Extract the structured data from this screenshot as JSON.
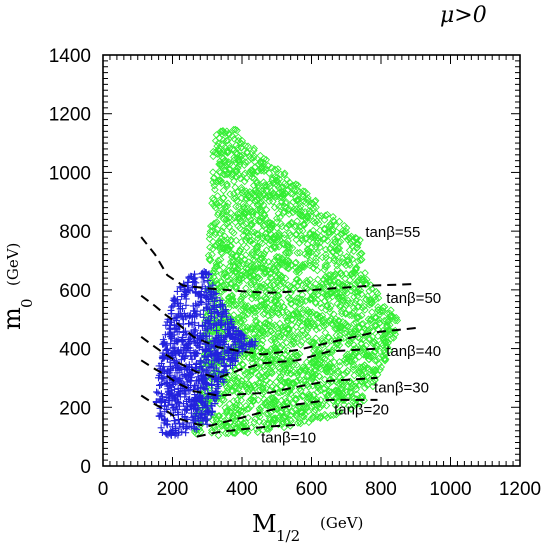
{
  "chart_data": {
    "type": "scatter",
    "title": "",
    "corner_label": "μ>0",
    "xlabel": "M",
    "xlabel_sub": "1/2",
    "xlabel_unit": "(GeV)",
    "ylabel": "m",
    "ylabel_sub": "0",
    "ylabel_unit": "(GeV)",
    "xlim": [
      0,
      1200
    ],
    "ylim": [
      0,
      1400
    ],
    "xticks": [
      0,
      200,
      400,
      600,
      800,
      1000,
      1200
    ],
    "yticks": [
      0,
      200,
      400,
      600,
      800,
      1000,
      1200,
      1400
    ],
    "colors": {
      "green": "#33ee33",
      "blue": "#2222dd",
      "line": "#000000"
    },
    "regions": [
      {
        "marker": "diamond",
        "color": "#33ee33",
        "polygon": [
          [
            260,
            100
          ],
          [
            280,
            300
          ],
          [
            300,
            600
          ],
          [
            310,
            900
          ],
          [
            320,
            1140
          ],
          [
            400,
            1150
          ],
          [
            460,
            1060
          ],
          [
            560,
            960
          ],
          [
            660,
            860
          ],
          [
            740,
            770
          ],
          [
            760,
            640
          ],
          [
            850,
            500
          ],
          [
            840,
            430
          ],
          [
            790,
            300
          ],
          [
            760,
            230
          ],
          [
            700,
            180
          ],
          [
            600,
            150
          ],
          [
            500,
            120
          ],
          [
            400,
            110
          ],
          [
            300,
            100
          ]
        ]
      },
      {
        "marker": "plus",
        "color": "#2222dd",
        "polygon": [
          [
            170,
            110
          ],
          [
            150,
            200
          ],
          [
            160,
            330
          ],
          [
            180,
            480
          ],
          [
            210,
            600
          ],
          [
            250,
            650
          ],
          [
            300,
            670
          ],
          [
            340,
            560
          ],
          [
            400,
            450
          ],
          [
            450,
            420
          ],
          [
            400,
            380
          ],
          [
            360,
            320
          ],
          [
            330,
            230
          ],
          [
            300,
            140
          ],
          [
            250,
            110
          ],
          [
            200,
            100
          ]
        ]
      }
    ],
    "series": [
      {
        "label": "tanβ=55",
        "curve": [
          [
            110,
            780
          ],
          [
            150,
            720
          ],
          [
            185,
            650
          ],
          [
            230,
            615
          ],
          [
            300,
            605
          ],
          [
            400,
            595
          ],
          [
            480,
            590
          ],
          [
            560,
            595
          ],
          [
            660,
            605
          ],
          [
            780,
            615
          ],
          [
            900,
            620
          ]
        ]
      },
      {
        "label": "tanβ=50",
        "curve": [
          [
            110,
            580
          ],
          [
            150,
            545
          ],
          [
            180,
            515
          ],
          [
            210,
            490
          ],
          [
            260,
            440
          ],
          [
            330,
            405
          ],
          [
            400,
            390
          ],
          [
            460,
            380
          ],
          [
            560,
            395
          ],
          [
            650,
            420
          ],
          [
            780,
            455
          ],
          [
            900,
            470
          ]
        ]
      },
      {
        "label": "tanβ=40",
        "curve": [
          [
            110,
            440
          ],
          [
            150,
            405
          ],
          [
            180,
            380
          ],
          [
            220,
            350
          ],
          [
            270,
            320
          ],
          [
            330,
            300
          ],
          [
            400,
            330
          ],
          [
            460,
            350
          ],
          [
            560,
            360
          ],
          [
            650,
            390
          ],
          [
            790,
            400
          ]
        ]
      },
      {
        "label": "tanβ=30",
        "curve": [
          [
            110,
            360
          ],
          [
            150,
            330
          ],
          [
            180,
            310
          ],
          [
            210,
            285
          ],
          [
            260,
            255
          ],
          [
            330,
            240
          ],
          [
            400,
            245
          ],
          [
            480,
            250
          ],
          [
            560,
            270
          ],
          [
            650,
            290
          ],
          [
            790,
            300
          ]
        ]
      },
      {
        "label": "tanβ=20",
        "curve": [
          [
            110,
            240
          ],
          [
            150,
            210
          ],
          [
            180,
            190
          ],
          [
            210,
            165
          ],
          [
            260,
            145
          ],
          [
            300,
            135
          ],
          [
            400,
            165
          ],
          [
            480,
            190
          ],
          [
            560,
            210
          ],
          [
            650,
            225
          ],
          [
            790,
            225
          ]
        ]
      },
      {
        "label": "tanβ=10",
        "curve": [
          [
            270,
            100
          ],
          [
            330,
            115
          ],
          [
            400,
            125
          ],
          [
            480,
            135
          ],
          [
            560,
            140
          ]
        ]
      }
    ],
    "annotations": [
      {
        "text": "tanβ=55",
        "x": 755,
        "y": 780
      },
      {
        "text": "tanβ=50",
        "x": 815,
        "y": 555
      },
      {
        "text": "tanβ=40",
        "x": 815,
        "y": 375
      },
      {
        "text": "tanβ=30",
        "x": 780,
        "y": 250
      },
      {
        "text": "tanβ=20",
        "x": 665,
        "y": 175
      },
      {
        "text": "tanβ=10",
        "x": 455,
        "y": 80
      }
    ],
    "grid": false
  }
}
